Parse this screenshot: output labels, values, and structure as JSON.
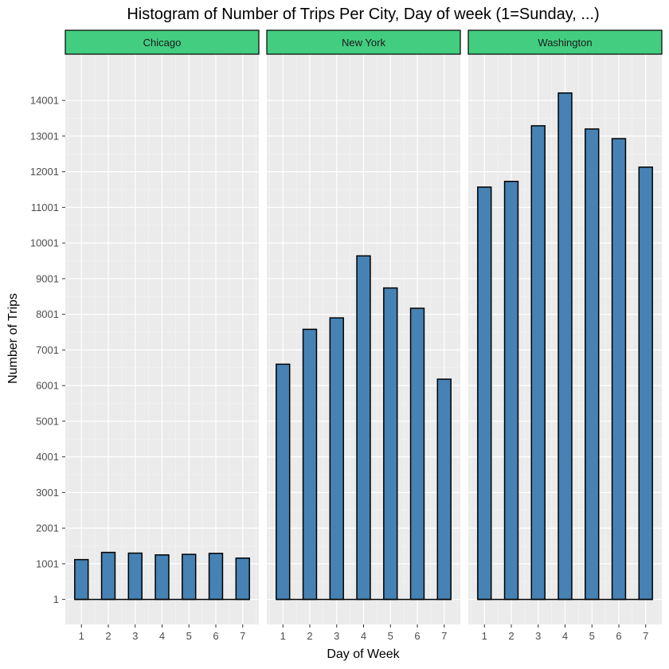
{
  "chart_data": {
    "type": "bar",
    "title": "Histogram of Number of Trips Per City, Day of week (1=Sunday, ...)",
    "xlabel": "Day of Week",
    "ylabel": "Number of Trips",
    "categories": [
      "1",
      "2",
      "3",
      "4",
      "5",
      "6",
      "7"
    ],
    "y_ticks": [
      "1",
      "1001",
      "2001",
      "3001",
      "4001",
      "5001",
      "6001",
      "7001",
      "8001",
      "9001",
      "10001",
      "11001",
      "12001",
      "13001",
      "14001"
    ],
    "ylim": [
      -700,
      15300
    ],
    "grid": true,
    "legend": "none",
    "facets": [
      {
        "name": "Chicago",
        "values": [
          1118,
          1320,
          1300,
          1250,
          1265,
          1293,
          1160
        ]
      },
      {
        "name": "New York",
        "values": [
          6600,
          7580,
          7900,
          9640,
          8740,
          8170,
          6180
        ]
      },
      {
        "name": "Washington",
        "values": [
          11570,
          11730,
          13290,
          14210,
          13200,
          12930,
          12130
        ]
      }
    ],
    "colors": {
      "bar_fill": "#4682b4",
      "bar_stroke": "#000000",
      "panel_background": "#ebebeb",
      "grid_major": "#ffffff",
      "strip_fill": "#43cd80",
      "strip_stroke": "#000000",
      "tick_text": "#4d4d4d"
    }
  }
}
